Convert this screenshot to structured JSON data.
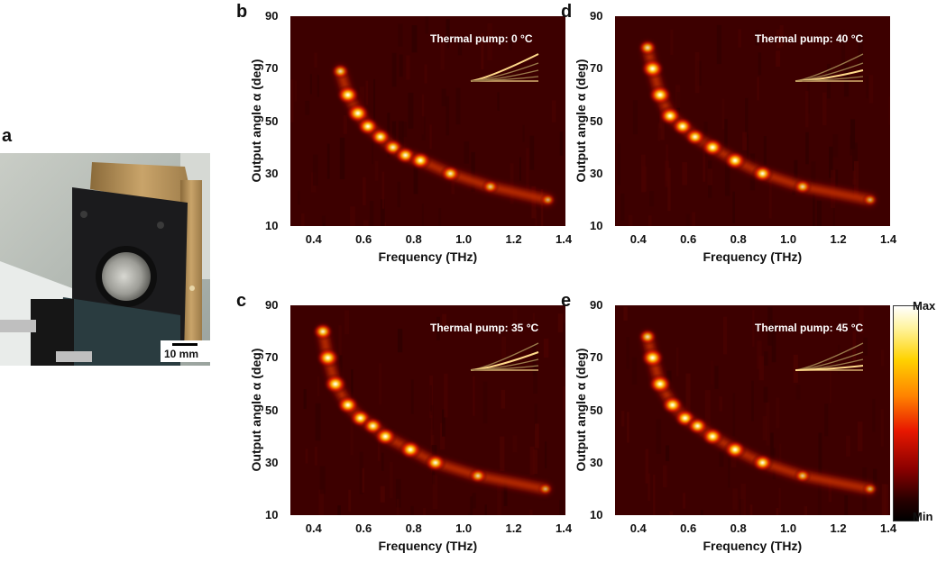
{
  "panel_a": {
    "letter": "a",
    "scale_bar": "10 mm"
  },
  "axes": {
    "xlabel": "Frequency (THz)",
    "ylabel": "Output angle α (deg)",
    "x_ticks": [
      "0.4",
      "0.6",
      "0.8",
      "1.0",
      "1.2",
      "1.4"
    ],
    "y_ticks": [
      "90",
      "70",
      "50",
      "30",
      "10"
    ]
  },
  "colorbar": {
    "max_label": "Max",
    "min_label": "Min"
  },
  "chart_data": [
    {
      "type": "heatmap",
      "letter": "b",
      "title": "Thermal pump: 0 °C",
      "xlabel": "Frequency (THz)",
      "ylabel": "Output angle α (deg)",
      "xlim": [
        0.3,
        1.4
      ],
      "ylim": [
        10,
        90
      ],
      "x": [
        0.5,
        0.53,
        0.57,
        0.61,
        0.66,
        0.71,
        0.76,
        0.82,
        0.94,
        1.1,
        1.33
      ],
      "y": [
        69,
        60,
        53,
        48,
        44,
        40,
        37,
        35,
        30,
        25,
        20
      ],
      "intensity": [
        0.55,
        0.95,
        1.0,
        0.85,
        0.8,
        0.75,
        0.8,
        0.85,
        0.7,
        0.45,
        0.3
      ]
    },
    {
      "type": "heatmap",
      "letter": "d",
      "title": "Thermal pump: 40 °C",
      "xlabel": "Frequency (THz)",
      "ylabel": "Output angle α (deg)",
      "xlim": [
        0.3,
        1.4
      ],
      "ylim": [
        10,
        90
      ],
      "x": [
        0.43,
        0.45,
        0.48,
        0.52,
        0.57,
        0.62,
        0.69,
        0.78,
        0.89,
        1.05,
        1.32
      ],
      "y": [
        78,
        70,
        60,
        52,
        48,
        44,
        40,
        35,
        30,
        25,
        20
      ],
      "intensity": [
        0.6,
        1.0,
        1.0,
        0.9,
        0.85,
        0.8,
        0.9,
        0.9,
        0.8,
        0.55,
        0.3
      ]
    },
    {
      "type": "heatmap",
      "letter": "c",
      "title": "Thermal pump: 35 °C",
      "xlabel": "Frequency (THz)",
      "ylabel": "Output angle α (deg)",
      "xlim": [
        0.3,
        1.4
      ],
      "ylim": [
        10,
        90
      ],
      "x": [
        0.43,
        0.45,
        0.48,
        0.53,
        0.58,
        0.63,
        0.68,
        0.78,
        0.88,
        1.05,
        1.32
      ],
      "y": [
        80,
        70,
        60,
        52,
        47,
        44,
        40,
        35,
        30,
        25,
        20
      ],
      "intensity": [
        0.75,
        1.0,
        1.0,
        0.9,
        0.85,
        0.8,
        0.9,
        0.9,
        0.8,
        0.55,
        0.3
      ]
    },
    {
      "type": "heatmap",
      "letter": "e",
      "title": "Thermal pump: 45 °C",
      "xlabel": "Frequency (THz)",
      "ylabel": "Output angle α (deg)",
      "xlim": [
        0.3,
        1.4
      ],
      "ylim": [
        10,
        90
      ],
      "x": [
        0.43,
        0.45,
        0.48,
        0.53,
        0.58,
        0.63,
        0.69,
        0.78,
        0.89,
        1.05,
        1.32
      ],
      "y": [
        78,
        70,
        60,
        52,
        47,
        44,
        40,
        35,
        30,
        25,
        20
      ],
      "intensity": [
        0.6,
        1.0,
        1.0,
        0.9,
        0.85,
        0.8,
        0.9,
        0.9,
        0.8,
        0.45,
        0.3
      ]
    }
  ]
}
